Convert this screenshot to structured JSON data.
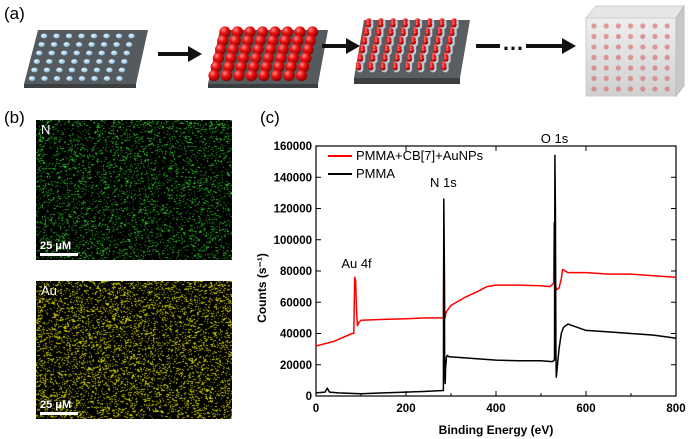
{
  "panel_labels": {
    "a": "(a)",
    "b": "(b)",
    "c": "(c)"
  },
  "schematic": {
    "ellipsis": "…"
  },
  "maps": [
    {
      "element": "N",
      "scale_bar": "25 μM",
      "color": "#33cc33"
    },
    {
      "element": "Au",
      "scale_bar": "25 μM",
      "color": "#d4d400"
    }
  ],
  "chart_data": {
    "type": "line",
    "xlabel": "Binding Energy (eV)",
    "ylabel": "Counts (s⁻¹)",
    "xlim": [
      0,
      800
    ],
    "ylim": [
      0,
      160000
    ],
    "xticks": [
      "0",
      "200",
      "400",
      "600",
      "800"
    ],
    "yticks": [
      "0",
      "20000",
      "40000",
      "60000",
      "80000",
      "100000",
      "120000",
      "140000",
      "160000"
    ],
    "legend_position": "top-left",
    "series": [
      {
        "name": "PMMA+CB[7]+AuNPs",
        "color": "#ff0000",
        "x": [
          0,
          40,
          80,
          84,
          86,
          88,
          90,
          92,
          95,
          100,
          150,
          200,
          250,
          283,
          284,
          285,
          286,
          287,
          288,
          290,
          300,
          330,
          360,
          380,
          400,
          450,
          500,
          520,
          528,
          529,
          530,
          531,
          532,
          534,
          540,
          545,
          548,
          560,
          600,
          650,
          700,
          750,
          800
        ],
        "y": [
          32000,
          35000,
          40000,
          40000,
          76000,
          74000,
          55000,
          45000,
          47000,
          48500,
          49000,
          49500,
          50000,
          50000,
          95000,
          85000,
          55000,
          50000,
          52000,
          54000,
          58000,
          63000,
          67000,
          70000,
          71000,
          71000,
          70500,
          70000,
          72000,
          111000,
          100000,
          80000,
          72000,
          68000,
          69000,
          75000,
          81000,
          79000,
          79000,
          78000,
          78000,
          77000,
          76000
        ]
      },
      {
        "name": "PMMA",
        "color": "#000000",
        "x": [
          0,
          20,
          25,
          30,
          50,
          100,
          150,
          200,
          250,
          283,
          284,
          285,
          286,
          287,
          288,
          290,
          292,
          296,
          300,
          350,
          400,
          450,
          500,
          525,
          530,
          531,
          532,
          533,
          534,
          540,
          545,
          550,
          560,
          600,
          650,
          700,
          750,
          800
        ],
        "y": [
          2000,
          2500,
          5000,
          2500,
          2000,
          1500,
          2000,
          2500,
          3000,
          3500,
          126000,
          89000,
          15000,
          8000,
          18000,
          25000,
          26000,
          25000,
          25000,
          24000,
          23000,
          22500,
          22500,
          22000,
          23000,
          154000,
          120000,
          30000,
          12000,
          30000,
          40000,
          44000,
          46000,
          42000,
          41000,
          40000,
          39000,
          37000
        ]
      }
    ],
    "annotations": [
      {
        "text": "Au 4f",
        "x": 90,
        "y": 78000
      },
      {
        "text": "N 1s",
        "x": 283,
        "y": 130000
      },
      {
        "text": "O 1s",
        "x": 530,
        "y": 158000
      }
    ]
  }
}
